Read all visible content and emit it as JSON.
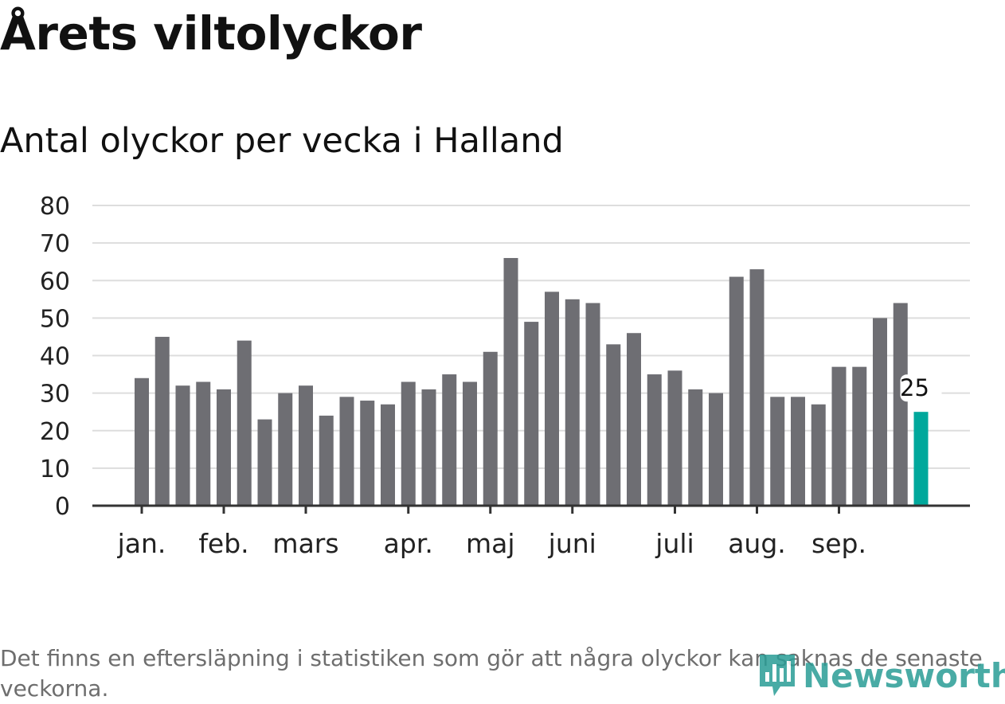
{
  "title": "Årets viltolyckor",
  "subtitle": "Antal olyckor per vecka i Halland",
  "footnote": "Det finns en eftersläpning i statistiken som gör att några olyckor kan saknas de senaste veckorna.",
  "logo": {
    "text": "Newsworthy",
    "icon": "newsworthy-logo-icon"
  },
  "colors": {
    "bar": "#6e6e73",
    "highlight": "#00a89c",
    "grid": "#dddddd",
    "axis": "#333333"
  },
  "chart_data": {
    "type": "bar",
    "title": "Antal olyckor per vecka i Halland",
    "xlabel": "",
    "ylabel": "",
    "ylim": [
      0,
      80
    ],
    "yticks": [
      0,
      10,
      20,
      30,
      40,
      50,
      60,
      70,
      80
    ],
    "grid": true,
    "month_labels": [
      {
        "label": "jan.",
        "week": 1
      },
      {
        "label": "feb.",
        "week": 5
      },
      {
        "label": "mars",
        "week": 9
      },
      {
        "label": "apr.",
        "week": 14
      },
      {
        "label": "maj",
        "week": 18
      },
      {
        "label": "juni",
        "week": 22
      },
      {
        "label": "juli",
        "week": 27
      },
      {
        "label": "aug.",
        "week": 31
      },
      {
        "label": "sep.",
        "week": 35
      }
    ],
    "weeks": [
      1,
      2,
      3,
      4,
      5,
      6,
      7,
      8,
      9,
      10,
      11,
      12,
      13,
      14,
      15,
      16,
      17,
      18,
      19,
      20,
      21,
      22,
      23,
      24,
      25,
      26,
      27,
      28,
      29,
      30,
      31,
      32,
      33,
      34,
      35,
      36,
      37,
      38,
      39
    ],
    "values": [
      34,
      45,
      32,
      33,
      31,
      44,
      23,
      30,
      32,
      24,
      29,
      28,
      27,
      33,
      31,
      35,
      33,
      41,
      66,
      49,
      57,
      55,
      54,
      43,
      46,
      35,
      36,
      31,
      30,
      61,
      63,
      29,
      29,
      27,
      37,
      37,
      50,
      54,
      25
    ],
    "highlight": {
      "index": 38,
      "label": "25"
    }
  }
}
